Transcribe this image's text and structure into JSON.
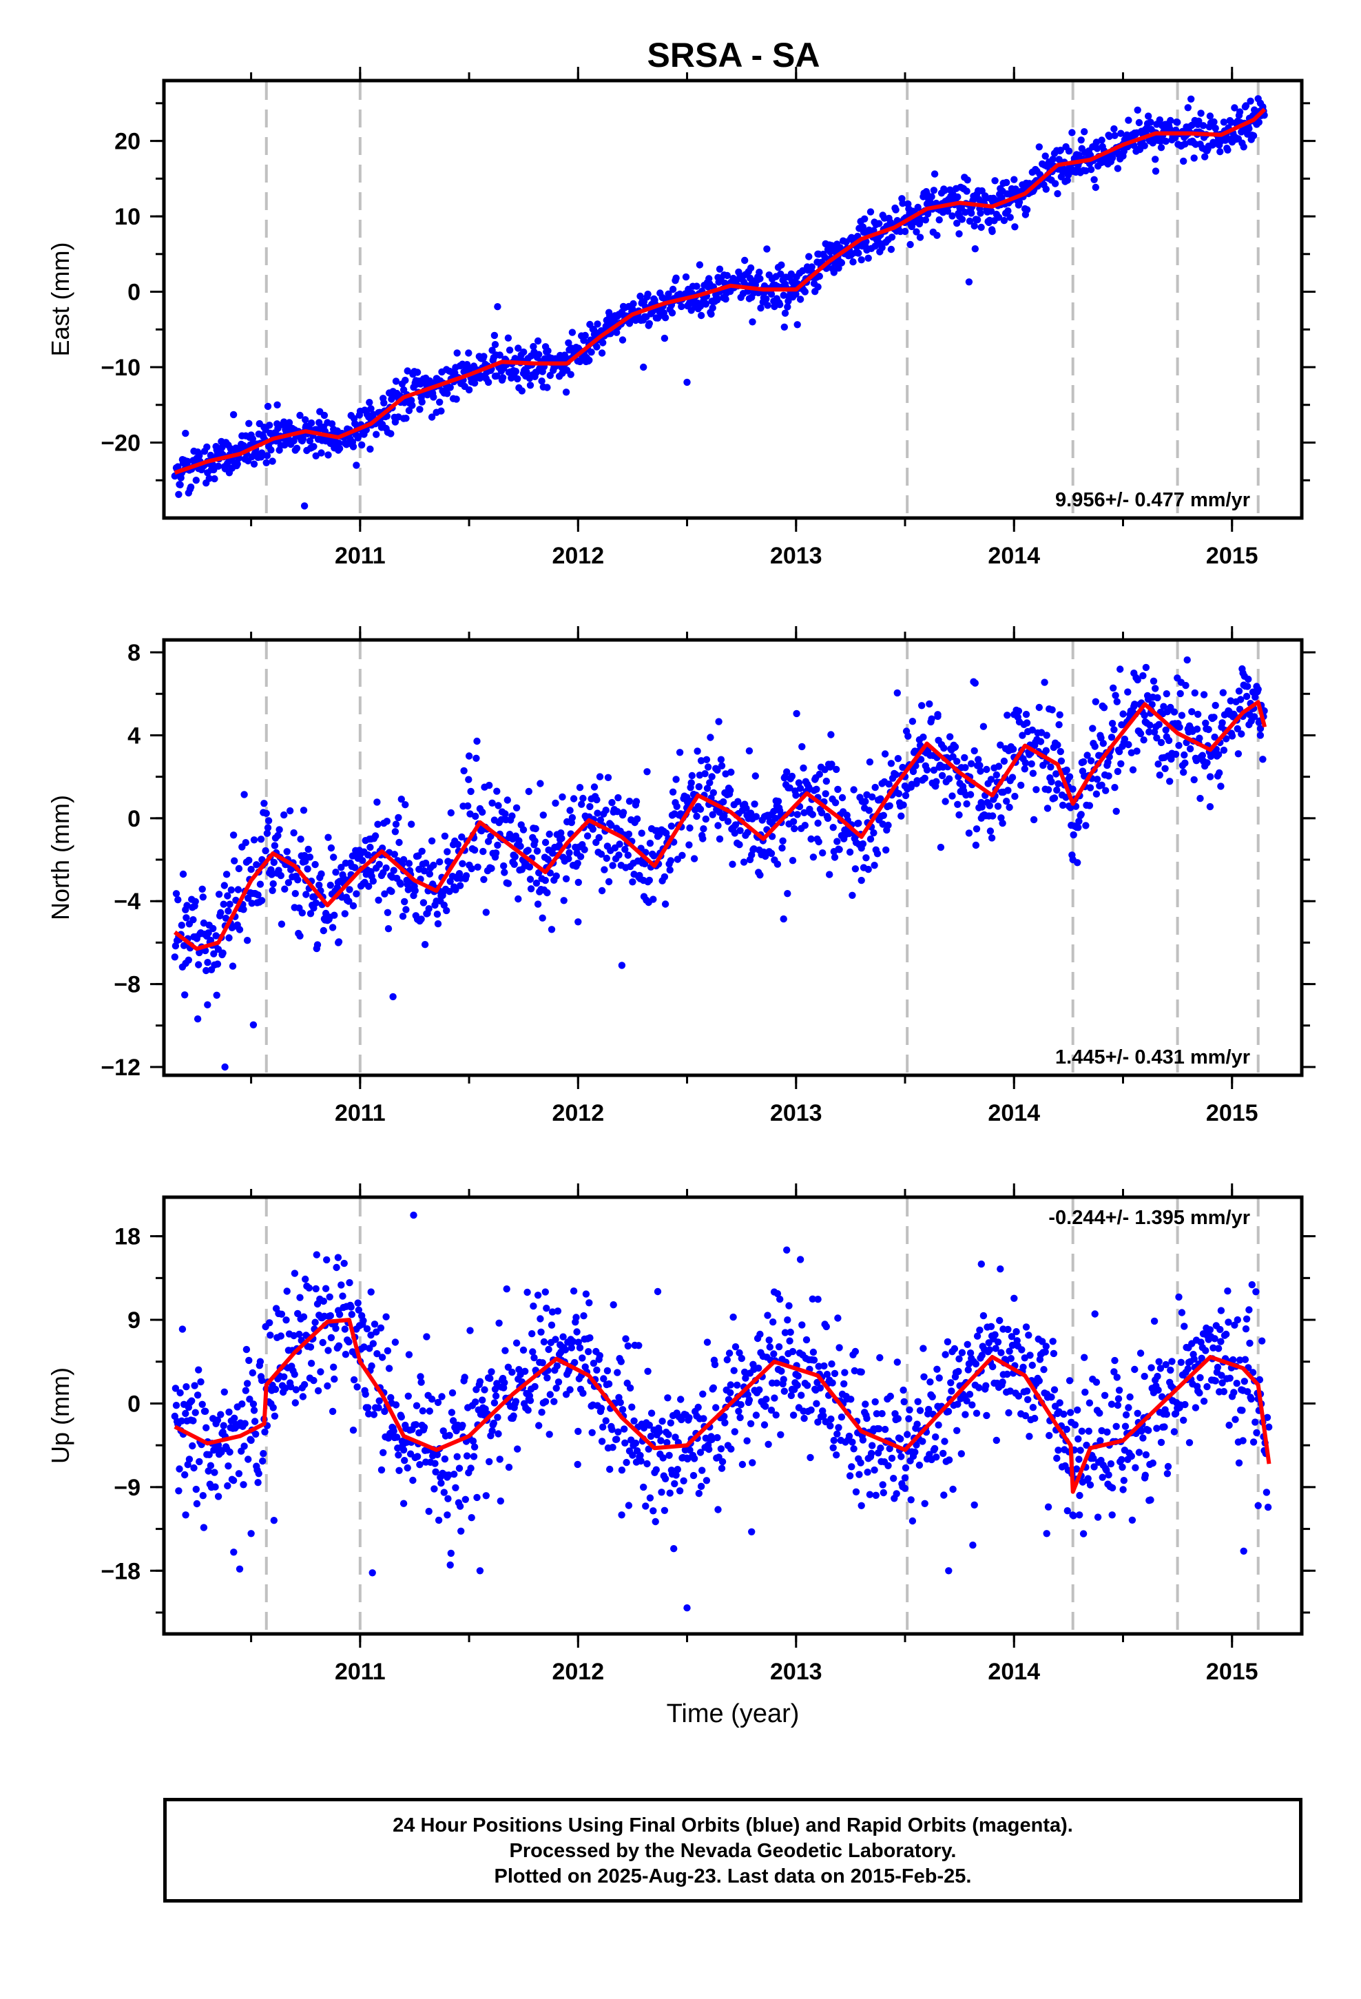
{
  "title": "SRSA - SA",
  "xlabel": "Time (year)",
  "caption": [
    "24 Hour Positions Using Final Orbits (blue) and Rapid Orbits (magenta).",
    "Processed by the Nevada Geodetic Laboratory.",
    "Plotted on 2025-Aug-23. Last data on 2015-Feb-25."
  ],
  "colors": {
    "final_orbits": "#0000ff",
    "model": "#ff0000",
    "steps": "#c0c0c0",
    "axes": "#000000"
  },
  "chart_data": [
    {
      "type": "scatter",
      "ylabel": "East (mm)",
      "rate": "9.956+/- 0.477 mm/yr",
      "xlim": [
        2010.1,
        2015.32
      ],
      "ylim": [
        -30,
        28
      ],
      "yticks": [
        -20,
        -10,
        0,
        10,
        20
      ],
      "xticks": [
        2011,
        2012,
        2013,
        2014,
        2015
      ],
      "step_epochs": [
        2010.57,
        2011.0,
        2013.51,
        2014.27,
        2014.75,
        2015.12
      ],
      "model": {
        "x": [
          2010.15,
          2010.3,
          2010.45,
          2010.6,
          2010.75,
          2010.9,
          2011.05,
          2011.2,
          2011.35,
          2011.5,
          2011.65,
          2011.8,
          2011.95,
          2012.1,
          2012.25,
          2012.4,
          2012.55,
          2012.7,
          2012.85,
          2013.0,
          2013.15,
          2013.3,
          2013.45,
          2013.6,
          2013.75,
          2013.9,
          2014.05,
          2014.2,
          2014.35,
          2014.5,
          2014.65,
          2014.8,
          2014.95,
          2015.1,
          2015.15
        ],
        "y": [
          -24,
          -22.5,
          -21.5,
          -19.5,
          -18.5,
          -19.3,
          -17.5,
          -14,
          -12.5,
          -11,
          -9.3,
          -9.5,
          -9.5,
          -6,
          -3,
          -1.5,
          -0.5,
          0.8,
          0.3,
          0.3,
          4,
          7,
          8.5,
          11,
          11.8,
          11.3,
          13,
          16.8,
          17.5,
          19.5,
          21,
          21,
          20.8,
          22.8,
          24.2
        ]
      },
      "clusters": {
        "x": [
          2010.2,
          2010.3,
          2010.4,
          2010.5,
          2010.62,
          2010.75,
          2010.9,
          2011.05,
          2011.2,
          2011.35,
          2011.5,
          2011.62,
          2011.75,
          2011.9,
          2012.05,
          2012.2,
          2012.3,
          2012.5,
          2012.65,
          2012.8,
          2012.95,
          2013.1,
          2013.25,
          2013.4,
          2013.5,
          2013.6,
          2013.75,
          2013.9,
          2014.05,
          2014.2,
          2014.35,
          2014.5,
          2014.65,
          2014.8,
          2014.95,
          2015.08,
          2015.13
        ],
        "y": [
          -23,
          -24,
          -24,
          -19,
          -15,
          -18,
          -21,
          -17,
          -13,
          -16,
          -13,
          -7,
          -8,
          -9,
          -7,
          -3,
          -10,
          -12,
          3,
          -4,
          1,
          5,
          7,
          8,
          8,
          13,
          10,
          8,
          11,
          13,
          18,
          18,
          16,
          21,
          20,
          23,
          25
        ]
      }
    },
    {
      "type": "scatter",
      "ylabel": "North (mm)",
      "rate": "1.445+/- 0.431 mm/yr",
      "xlim": [
        2010.1,
        2015.32
      ],
      "ylim": [
        -12.4,
        8.6
      ],
      "yticks": [
        -12,
        -8,
        -4,
        0,
        4,
        8
      ],
      "xticks": [
        2011,
        2012,
        2013,
        2014,
        2015
      ],
      "step_epochs": [
        2010.57,
        2011.0,
        2013.51,
        2014.27,
        2014.75,
        2015.12
      ],
      "model": {
        "x": [
          2010.15,
          2010.25,
          2010.35,
          2010.5,
          2010.6,
          2010.7,
          2010.85,
          2011.0,
          2011.1,
          2011.25,
          2011.35,
          2011.55,
          2011.7,
          2011.85,
          2011.95,
          2012.05,
          2012.2,
          2012.35,
          2012.55,
          2012.7,
          2012.85,
          2013.05,
          2013.2,
          2013.3,
          2013.45,
          2013.6,
          2013.75,
          2013.9,
          2014.05,
          2014.2,
          2014.27,
          2014.35,
          2014.45,
          2014.6,
          2014.75,
          2014.9,
          2015.05,
          2015.12,
          2015.15
        ],
        "y": [
          -5.5,
          -6.3,
          -6.0,
          -3.0,
          -1.7,
          -2.3,
          -4.2,
          -2.5,
          -1.6,
          -3.0,
          -3.5,
          -0.2,
          -1.4,
          -2.6,
          -1.2,
          -0.1,
          -0.9,
          -2.3,
          1.1,
          0.3,
          -1.0,
          1.2,
          0.0,
          -0.9,
          1.5,
          3.6,
          2.2,
          1.1,
          3.5,
          2.6,
          0.7,
          2.1,
          3.5,
          5.5,
          4.1,
          3.3,
          5.1,
          5.6,
          4.4
        ]
      },
      "clusters": {
        "x": [
          2010.2,
          2010.3,
          2010.38,
          2010.55,
          2010.75,
          2010.9,
          2011.05,
          2011.2,
          2011.35,
          2011.5,
          2011.7,
          2011.85,
          2012.0,
          2012.1,
          2012.3,
          2012.5,
          2012.65,
          2012.8,
          2012.95,
          2013.1,
          2013.3,
          2013.5,
          2013.65,
          2013.85,
          2014.0,
          2014.15,
          2014.27,
          2014.4,
          2014.55,
          2014.7,
          2014.9,
          2015.05,
          2015.13
        ],
        "y": [
          -7,
          -9,
          -12,
          -2,
          -3,
          -6,
          -1,
          -2,
          -4,
          3,
          -1,
          -3,
          -5,
          2,
          -3,
          1,
          -1,
          0,
          2,
          1,
          -3,
          2,
          5,
          0,
          5,
          4,
          -2,
          3,
          7,
          6,
          2,
          7,
          4
        ]
      }
    },
    {
      "type": "scatter",
      "ylabel": "Up (mm)",
      "rate": "-0.244+/- 1.395 mm/yr",
      "xlim": [
        2010.1,
        2015.32
      ],
      "ylim": [
        -24.8,
        22.2
      ],
      "yticks": [
        -18,
        -9,
        0,
        9,
        18
      ],
      "xticks": [
        2011,
        2012,
        2013,
        2014,
        2015
      ],
      "step_epochs": [
        2010.57,
        2011.0,
        2013.51,
        2014.27,
        2014.75,
        2015.12
      ],
      "model": {
        "x": [
          2010.15,
          2010.3,
          2010.45,
          2010.56,
          2010.57,
          2010.7,
          2010.85,
          2010.95,
          2011.0,
          2011.1,
          2011.2,
          2011.35,
          2011.5,
          2011.7,
          2011.9,
          2012.05,
          2012.2,
          2012.35,
          2012.5,
          2012.7,
          2012.9,
          2013.1,
          2013.3,
          2013.5,
          2013.7,
          2013.9,
          2014.05,
          2014.2,
          2014.26,
          2014.27,
          2014.35,
          2014.5,
          2014.7,
          2014.9,
          2015.05,
          2015.12,
          2015.17
        ],
        "y": [
          -2.5,
          -4.3,
          -3.5,
          -2.2,
          2.0,
          5.5,
          8.8,
          9.0,
          4.5,
          1.0,
          -3.5,
          -5.0,
          -3.5,
          1.0,
          4.8,
          3.0,
          -1.5,
          -4.8,
          -4.5,
          0.0,
          4.5,
          3.0,
          -3.0,
          -5.0,
          0.0,
          5.0,
          3.0,
          -2.5,
          -4.5,
          -9.5,
          -4.8,
          -4.0,
          0.5,
          5.0,
          3.8,
          2.0,
          -6.5
        ]
      },
      "clusters": {
        "x": [
          2010.2,
          2010.35,
          2010.42,
          2010.5,
          2010.7,
          2010.9,
          2011.05,
          2011.2,
          2011.4,
          2011.55,
          2011.85,
          2012.0,
          2012.2,
          2012.3,
          2012.5,
          2012.7,
          2012.9,
          2013.1,
          2013.3,
          2013.5,
          2013.7,
          2013.85,
          2013.95,
          2014.15,
          2014.3,
          2014.45,
          2014.6,
          2014.8,
          2014.95,
          2015.05,
          2015.12
        ],
        "y": [
          -12,
          -10,
          -16,
          -14,
          14,
          10,
          12,
          -5,
          -12,
          -18,
          12,
          -3,
          -12,
          -9,
          -22,
          2,
          12,
          -2,
          -11,
          -8,
          -18,
          15,
          8,
          -14,
          -12,
          -12,
          -8,
          6,
          10,
          -4,
          -11
        ]
      }
    }
  ]
}
